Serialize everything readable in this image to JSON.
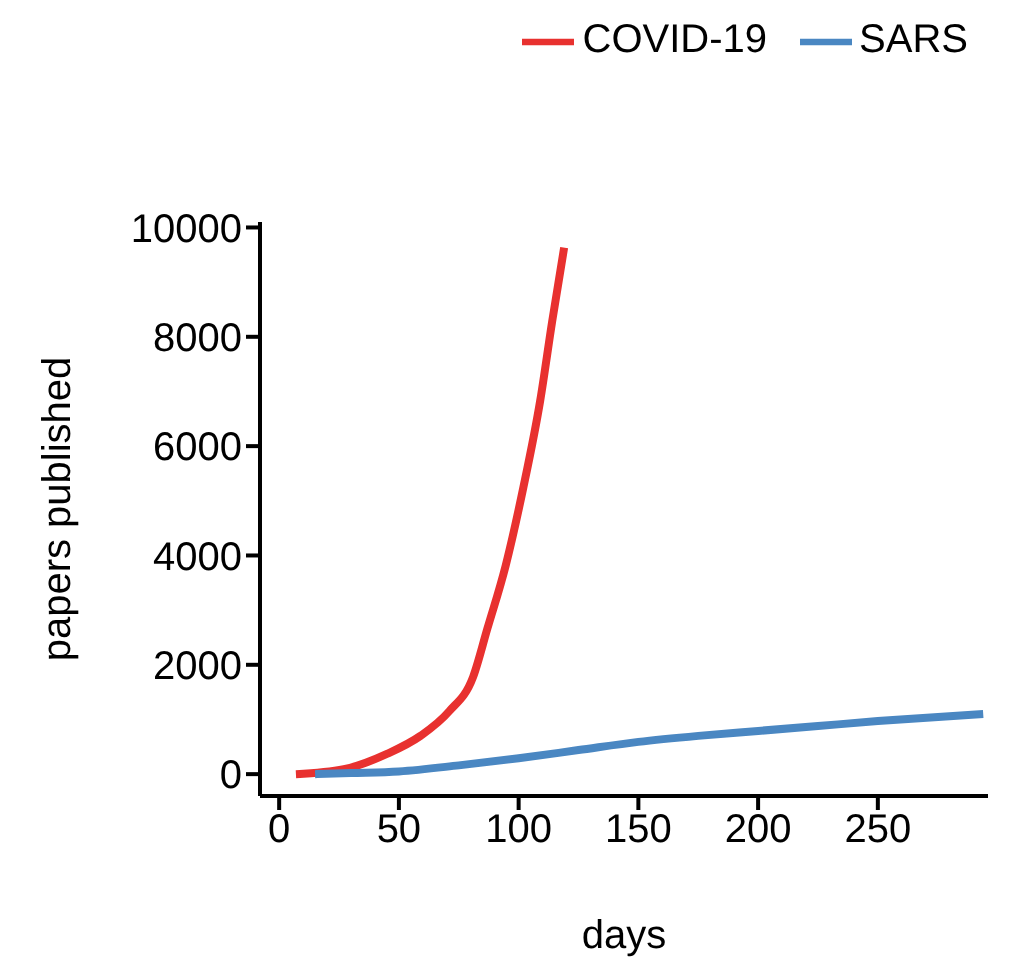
{
  "chart_data": {
    "type": "line",
    "xlabel": "days",
    "ylabel": "papers published",
    "xlim": [
      -8,
      296
    ],
    "xticks": [
      0,
      50,
      100,
      150,
      200,
      250
    ],
    "ylim": [
      -400,
      10100
    ],
    "yticks": [
      0,
      2000,
      4000,
      6000,
      8000,
      10000
    ],
    "grid": false,
    "legend": "top right",
    "marker": "none",
    "line_style": "solid",
    "series": [
      {
        "name": "COVID-19",
        "color": "#e8312f",
        "x": [
          7,
          27,
          45,
          59,
          71,
          81,
          87,
          94.5,
          102,
          109,
          114,
          119
        ],
        "values": [
          0,
          90,
          370,
          700,
          1150,
          1780,
          2670,
          3800,
          5250,
          6830,
          8280,
          9630
        ]
      },
      {
        "name": "SARS",
        "color": "#4a87c2",
        "x": [
          15,
          30,
          50,
          75,
          100,
          125,
          150,
          175,
          200,
          225,
          250,
          294
        ],
        "values": [
          0,
          20,
          50,
          160,
          290,
          440,
          590,
          700,
          790,
          880,
          970,
          1100
        ]
      }
    ]
  }
}
